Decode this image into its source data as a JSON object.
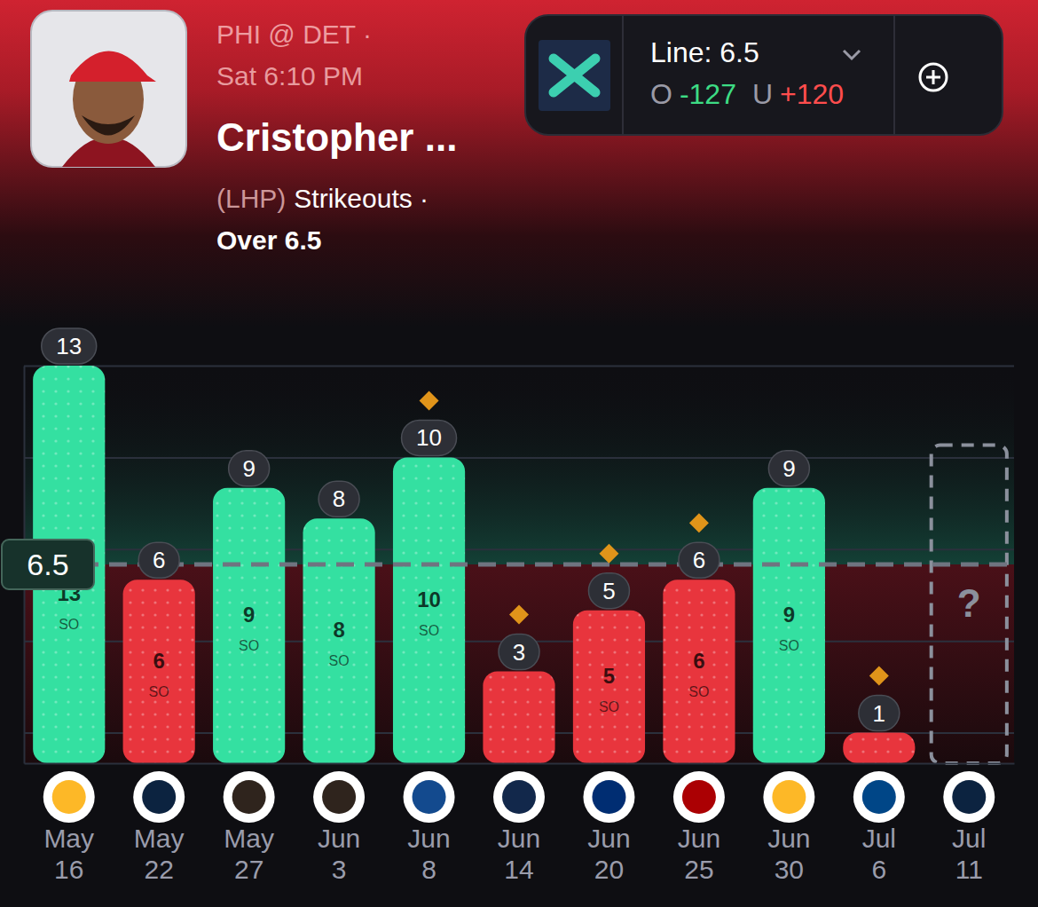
{
  "header": {
    "matchup": "PHI @ DET ·",
    "time": "Sat 6:10 PM",
    "player": "Cristopher ...",
    "hand": "(LHP)",
    "stat": "Strikeouts ·",
    "pick": "Over 6.5"
  },
  "odds": {
    "line": "Line: 6.5",
    "over_label": "O",
    "over_price": "-127",
    "under_label": "U",
    "under_price": "+120"
  },
  "chart_data": {
    "type": "bar",
    "categories": [
      "May 16",
      "May 22",
      "May 27",
      "Jun 3",
      "Jun 8",
      "Jun 14",
      "Jun 20",
      "Jun 25",
      "Jun 30",
      "Jul 6",
      "Jul 11"
    ],
    "values": [
      13,
      6,
      9,
      8,
      10,
      3,
      5,
      6,
      9,
      1,
      null
    ],
    "colors": [
      "#34e0a1",
      "#e8353d",
      "#34e0a1",
      "#34e0a1",
      "#34e0a1",
      "#e8353d",
      "#e8353d",
      "#e8353d",
      "#34e0a1",
      "#e8353d",
      "#8b909c"
    ],
    "highlight": [
      false,
      false,
      false,
      false,
      true,
      true,
      true,
      true,
      false,
      true,
      false
    ],
    "unit_label": "SO",
    "placeholder_label": "?",
    "reference_line": {
      "value": 6.5,
      "label": "6.5"
    },
    "ylim": [
      0,
      13
    ],
    "yticks": [
      1,
      4,
      7,
      10,
      13
    ],
    "tick_labels": "x",
    "grid": true,
    "data_labels": true
  }
}
